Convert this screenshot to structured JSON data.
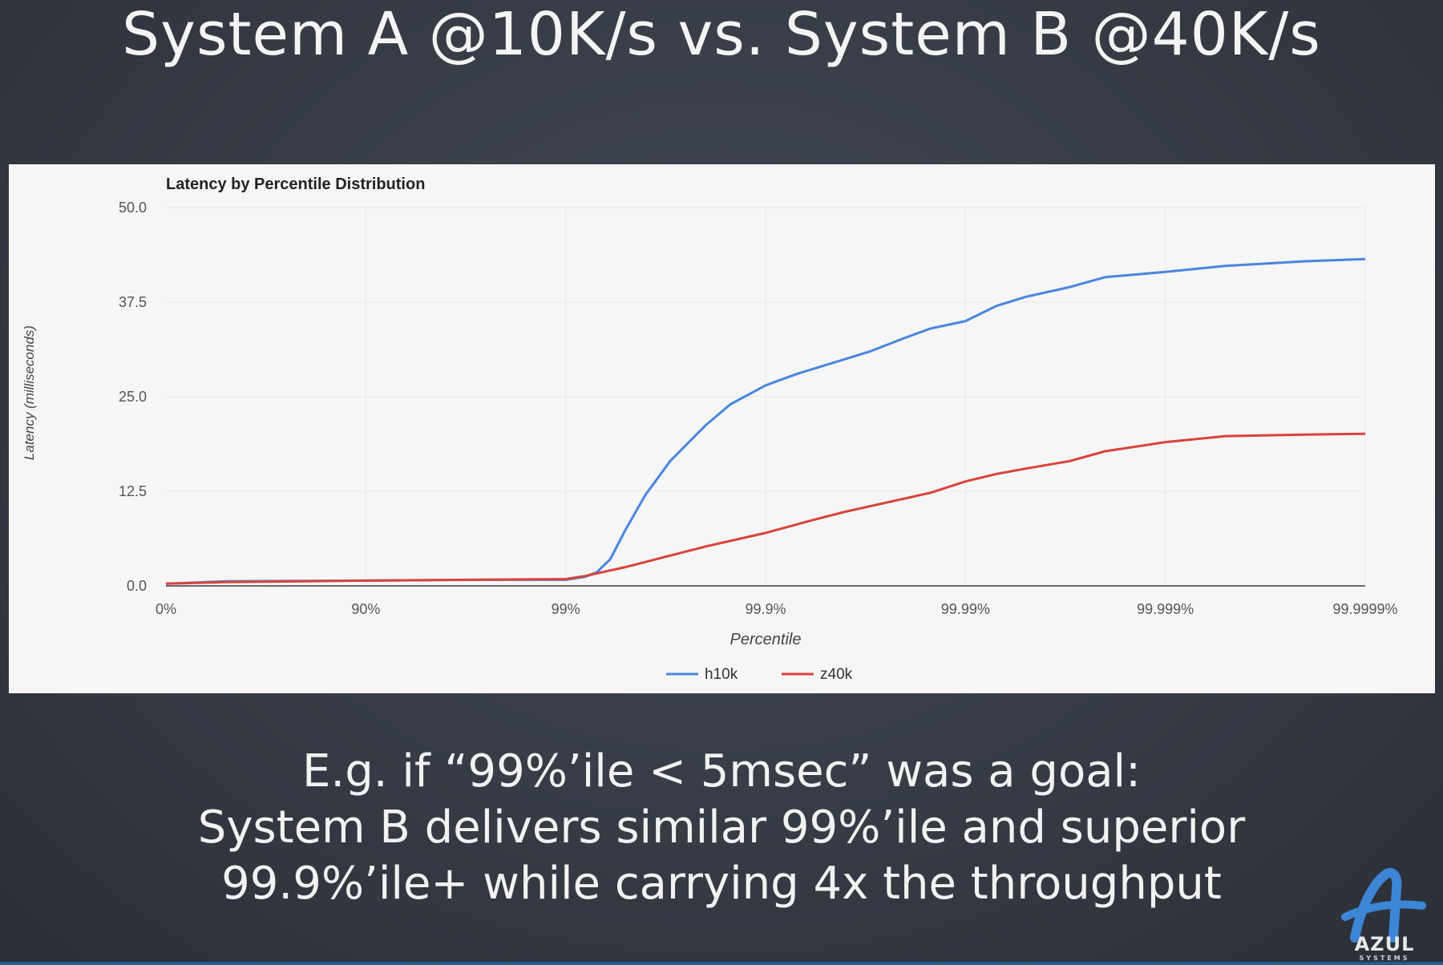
{
  "slide": {
    "title": "System A @10K/s vs. System B @40K/s",
    "caption_lines": [
      "E.g. if “99%’ile < 5msec” was a goal:",
      "System B delivers similar 99%’ile and superior",
      "99.9%’ile+ while carrying 4x the throughput"
    ],
    "logo": {
      "icon": "azul-systems-logo-icon",
      "text": "AZUL",
      "subtext": "SYSTEMS"
    }
  },
  "colors": {
    "h10k": "#4a85df",
    "z40k": "#d9433c",
    "grid": "#e9e9e9",
    "axis": "#6b6b6b"
  },
  "chart_data": {
    "type": "line",
    "title": "Latency by Percentile Distribution",
    "xlabel": "Percentile",
    "ylabel": "Latency (milliseconds)",
    "x_scale": "log(1/(1-p))",
    "x_tick_labels": [
      "0%",
      "90%",
      "99%",
      "99.9%",
      "99.99%",
      "99.999%",
      "99.9999%"
    ],
    "x_ticks": [
      0,
      90,
      99,
      99.9,
      99.99,
      99.999,
      99.9999
    ],
    "y_ticks": [
      "0.0",
      "12.5",
      "25.0",
      "37.5",
      "50.0"
    ],
    "ylim": [
      0,
      50
    ],
    "grid": true,
    "legend_position": "bottom",
    "series": [
      {
        "name": "h10k",
        "points": [
          [
            0,
            0.3
          ],
          [
            50,
            0.6
          ],
          [
            90,
            0.7
          ],
          [
            97,
            0.8
          ],
          [
            99,
            0.8
          ],
          [
            99.2,
            1.2
          ],
          [
            99.3,
            1.8
          ],
          [
            99.4,
            3.5
          ],
          [
            99.5,
            7.5
          ],
          [
            99.6,
            12.0
          ],
          [
            99.7,
            16.5
          ],
          [
            99.8,
            21.2
          ],
          [
            99.85,
            24.0
          ],
          [
            99.9,
            26.5
          ],
          [
            99.93,
            28.0
          ],
          [
            99.95,
            29.2
          ],
          [
            99.97,
            31.0
          ],
          [
            99.98,
            32.8
          ],
          [
            99.985,
            34.0
          ],
          [
            99.99,
            35.0
          ],
          [
            99.993,
            37.0
          ],
          [
            99.995,
            38.2
          ],
          [
            99.997,
            39.5
          ],
          [
            99.998,
            40.8
          ],
          [
            99.999,
            41.5
          ],
          [
            99.9995,
            42.3
          ],
          [
            99.9998,
            42.9
          ],
          [
            99.9999,
            43.2
          ]
        ]
      },
      {
        "name": "z40k",
        "points": [
          [
            0,
            0.3
          ],
          [
            50,
            0.5
          ],
          [
            90,
            0.7
          ],
          [
            97,
            0.8
          ],
          [
            99,
            0.9
          ],
          [
            99.2,
            1.3
          ],
          [
            99.5,
            2.5
          ],
          [
            99.7,
            4.0
          ],
          [
            99.8,
            5.2
          ],
          [
            99.9,
            7.0
          ],
          [
            99.94,
            8.6
          ],
          [
            99.96,
            9.8
          ],
          [
            99.975,
            11.0
          ],
          [
            99.985,
            12.3
          ],
          [
            99.99,
            13.8
          ],
          [
            99.993,
            14.8
          ],
          [
            99.995,
            15.5
          ],
          [
            99.997,
            16.5
          ],
          [
            99.998,
            17.8
          ],
          [
            99.999,
            19.0
          ],
          [
            99.9995,
            19.8
          ],
          [
            99.9998,
            20.0
          ],
          [
            99.9999,
            20.1
          ]
        ]
      }
    ]
  }
}
